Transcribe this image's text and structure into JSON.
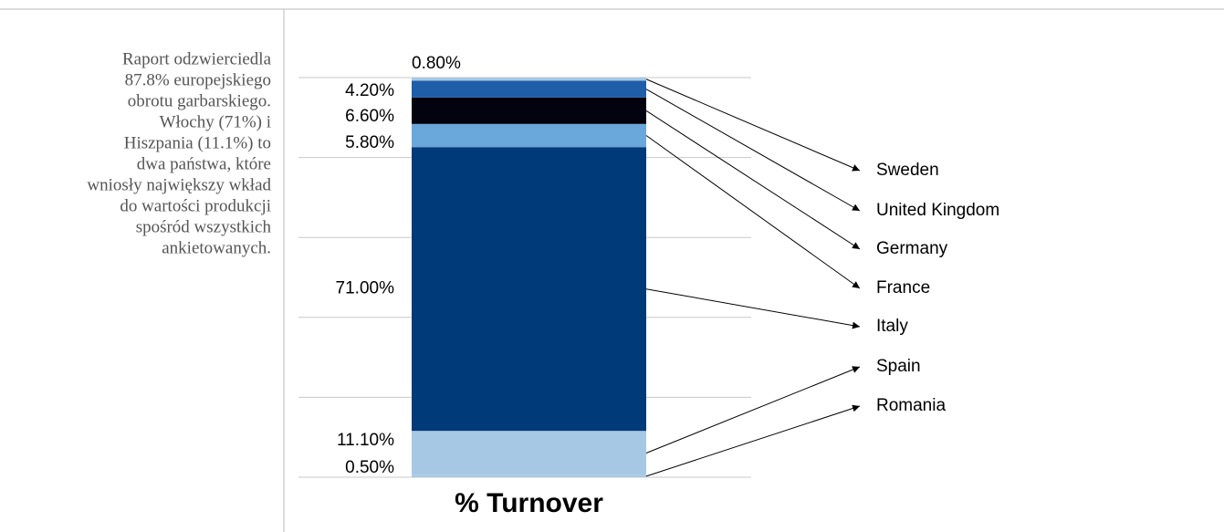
{
  "chart_data": {
    "type": "stacked_bar",
    "annotations": [
      "Raport odzwierciedla",
      "87.8% europejskiego",
      "obrotu garbarskiego.",
      "Włochy (71%) i",
      "Hiszpania (11.1%) to",
      "dwa państwa, które",
      "wniosły największy wkład",
      "do wartości produkcji",
      "spośród wszystkich",
      "ankietowanych."
    ],
    "categories": [
      "% Turnover"
    ],
    "series": [
      {
        "name": "Romania",
        "color": "#a7c8e5",
        "values": [
          0.5
        ],
        "value_labels": [
          "0.50%"
        ]
      },
      {
        "name": "Spain",
        "color": "#a7c8e5",
        "values": [
          11.1
        ],
        "value_labels": [
          "11.10%"
        ]
      },
      {
        "name": "Italy",
        "color": "#003a78",
        "values": [
          71.0
        ],
        "value_labels": [
          "71.00%"
        ]
      },
      {
        "name": "France",
        "color": "#6aa7da",
        "values": [
          5.8
        ],
        "value_labels": [
          "5.80%"
        ]
      },
      {
        "name": "Germany",
        "color": "#02030f",
        "values": [
          6.6
        ],
        "value_labels": [
          "6.60%"
        ]
      },
      {
        "name": "United Kingdom",
        "color": "#1f5ea8",
        "values": [
          4.2
        ],
        "value_labels": [
          "4.20%"
        ]
      },
      {
        "name": "Sweden",
        "color": "#a7c8e5",
        "values": [
          0.8
        ],
        "value_labels": [
          "0.80%"
        ]
      }
    ],
    "ylim": [
      0,
      100
    ],
    "yticks": [
      0,
      20,
      40,
      60,
      80,
      100
    ],
    "grid": true
  }
}
